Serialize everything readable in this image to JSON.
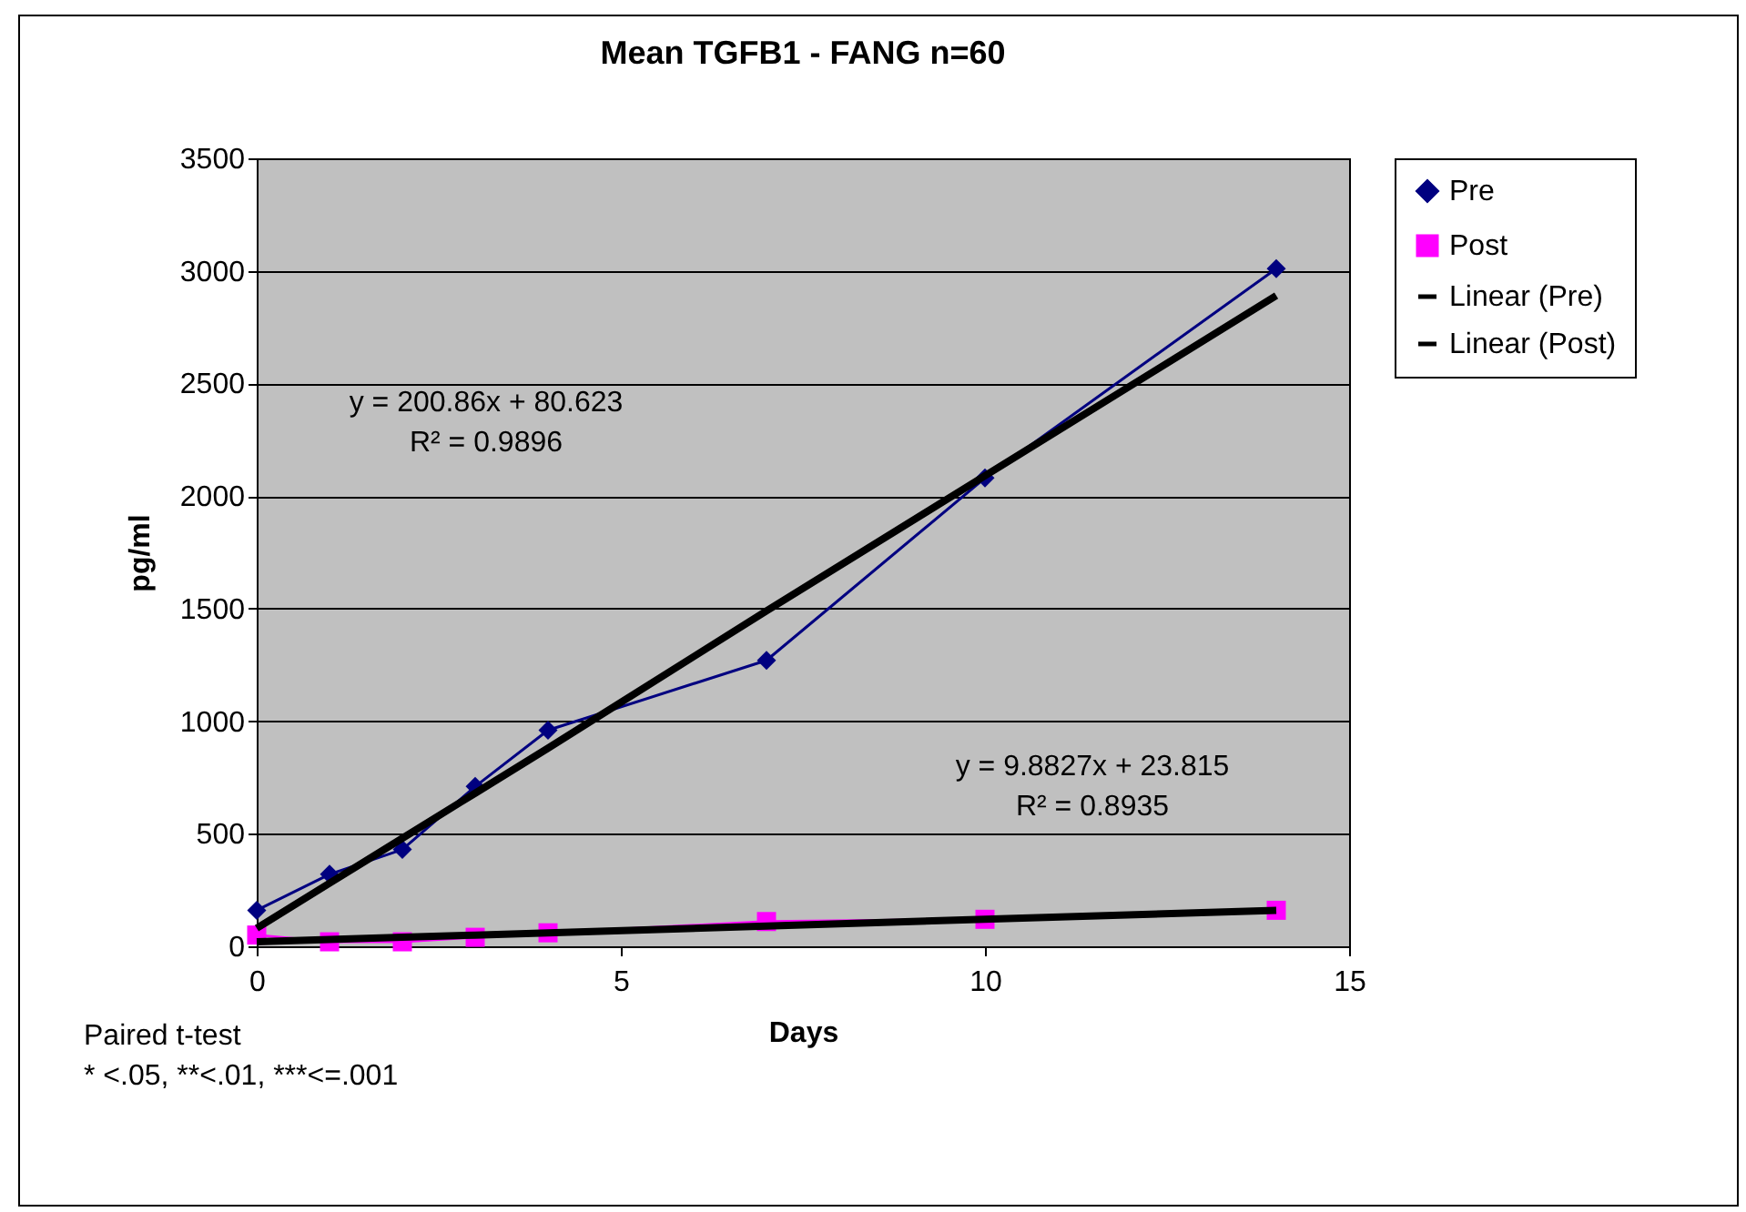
{
  "chart_data": {
    "type": "line",
    "title": "Mean TGFB1 - FANG n=60",
    "xlabel": "Days",
    "ylabel": "pg/ml",
    "x": [
      0,
      1,
      2,
      3,
      4,
      7,
      10,
      14
    ],
    "series": [
      {
        "name": "Pre",
        "color": "#000080",
        "marker": "diamond",
        "values": [
          160,
          320,
          430,
          710,
          960,
          1270,
          2080,
          3010
        ]
      },
      {
        "name": "Post",
        "color": "#ff00ff",
        "marker": "square",
        "values": [
          50,
          20,
          20,
          40,
          60,
          110,
          120,
          160
        ]
      },
      {
        "name": "Linear (Pre)",
        "color": "#000000",
        "values": [
          80,
          280,
          480,
          680,
          880,
          1490,
          2090,
          2890
        ]
      },
      {
        "name": "Linear (Post)",
        "color": "#000000",
        "values": [
          20,
          30,
          40,
          50,
          60,
          90,
          120,
          160
        ]
      }
    ],
    "xlim": [
      0,
      15
    ],
    "xticks": [
      0,
      5,
      10,
      15
    ],
    "ylim": [
      0,
      3500
    ],
    "yticks": [
      0,
      500,
      1000,
      1500,
      2000,
      2500,
      3000,
      3500
    ],
    "grid": "y",
    "legend": "right",
    "annotations": [
      "y = 200.86x + 80.623",
      "R² = 0.9896",
      "y = 9.8827x + 23.815",
      "R² = 0.8935",
      "Paired t-test",
      "* <.05, **<.01, ***<=.001"
    ]
  }
}
